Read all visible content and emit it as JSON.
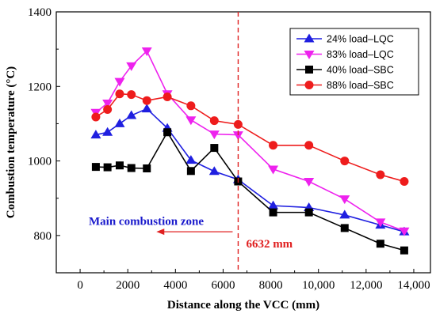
{
  "chart_data": {
    "type": "line",
    "xlabel": "Distance along the VCC (mm)",
    "ylabel": "Combustion temperature (°C)",
    "xlim": [
      -1000,
      14700
    ],
    "ylim": [
      700,
      1400
    ],
    "x_ticks": [
      0,
      2000,
      4000,
      6000,
      8000,
      10000,
      12000,
      14000
    ],
    "x_tick_labels": [
      "0",
      "2000",
      "4000",
      "6000",
      "8000",
      "10,000",
      "12,000",
      "14,000"
    ],
    "y_ticks": [
      800,
      1000,
      1200,
      1400
    ],
    "y_tick_labels": [
      "800",
      "1000",
      "1200",
      "1400"
    ],
    "grid": false,
    "legend_position": "top-right",
    "series": [
      {
        "name": "24% load–LQC",
        "color": "#1f1fe0",
        "marker": "triangle-up",
        "x": [
          660,
          1150,
          1660,
          2150,
          2800,
          3660,
          4650,
          5630,
          6630,
          8100,
          9600,
          11100,
          12600,
          13600
        ],
        "y": [
          1070,
          1077,
          1100,
          1122,
          1140,
          1088,
          1002,
          972,
          950,
          880,
          875,
          855,
          828,
          810
        ]
      },
      {
        "name": "83% load–LQC",
        "color": "#ee22ee",
        "marker": "triangle-down",
        "x": [
          660,
          1150,
          1660,
          2150,
          2800,
          3660,
          4650,
          5630,
          6630,
          8100,
          9600,
          11100,
          12600,
          13600
        ],
        "y": [
          1130,
          1155,
          1213,
          1255,
          1295,
          1180,
          1110,
          1072,
          1070,
          978,
          945,
          898,
          836,
          812
        ]
      },
      {
        "name": "40% load–SBC",
        "color": "#000000",
        "marker": "square",
        "x": [
          660,
          1150,
          1660,
          2150,
          2800,
          3660,
          4650,
          5630,
          6630,
          8100,
          9600,
          11100,
          12600,
          13600
        ],
        "y": [
          984,
          983,
          988,
          981,
          980,
          1077,
          973,
          1035,
          945,
          862,
          862,
          820,
          778,
          760
        ]
      },
      {
        "name": "88% load–SBC",
        "color": "#ee1c1c",
        "marker": "circle",
        "x": [
          660,
          1150,
          1660,
          2150,
          2800,
          3660,
          4650,
          5630,
          6630,
          8100,
          9600,
          11100,
          12600,
          13600
        ],
        "y": [
          1118,
          1138,
          1180,
          1178,
          1162,
          1172,
          1148,
          1108,
          1098,
          1042,
          1042,
          1000,
          963,
          945
        ]
      }
    ],
    "vline": {
      "x": 6632,
      "color": "#e02020",
      "style": "dashed"
    },
    "annotations": {
      "zone_label": "Main combustion zone",
      "position_label": "6632 mm",
      "arrow_from": 6400,
      "arrow_to": 3200,
      "arrow_y": 810
    }
  }
}
